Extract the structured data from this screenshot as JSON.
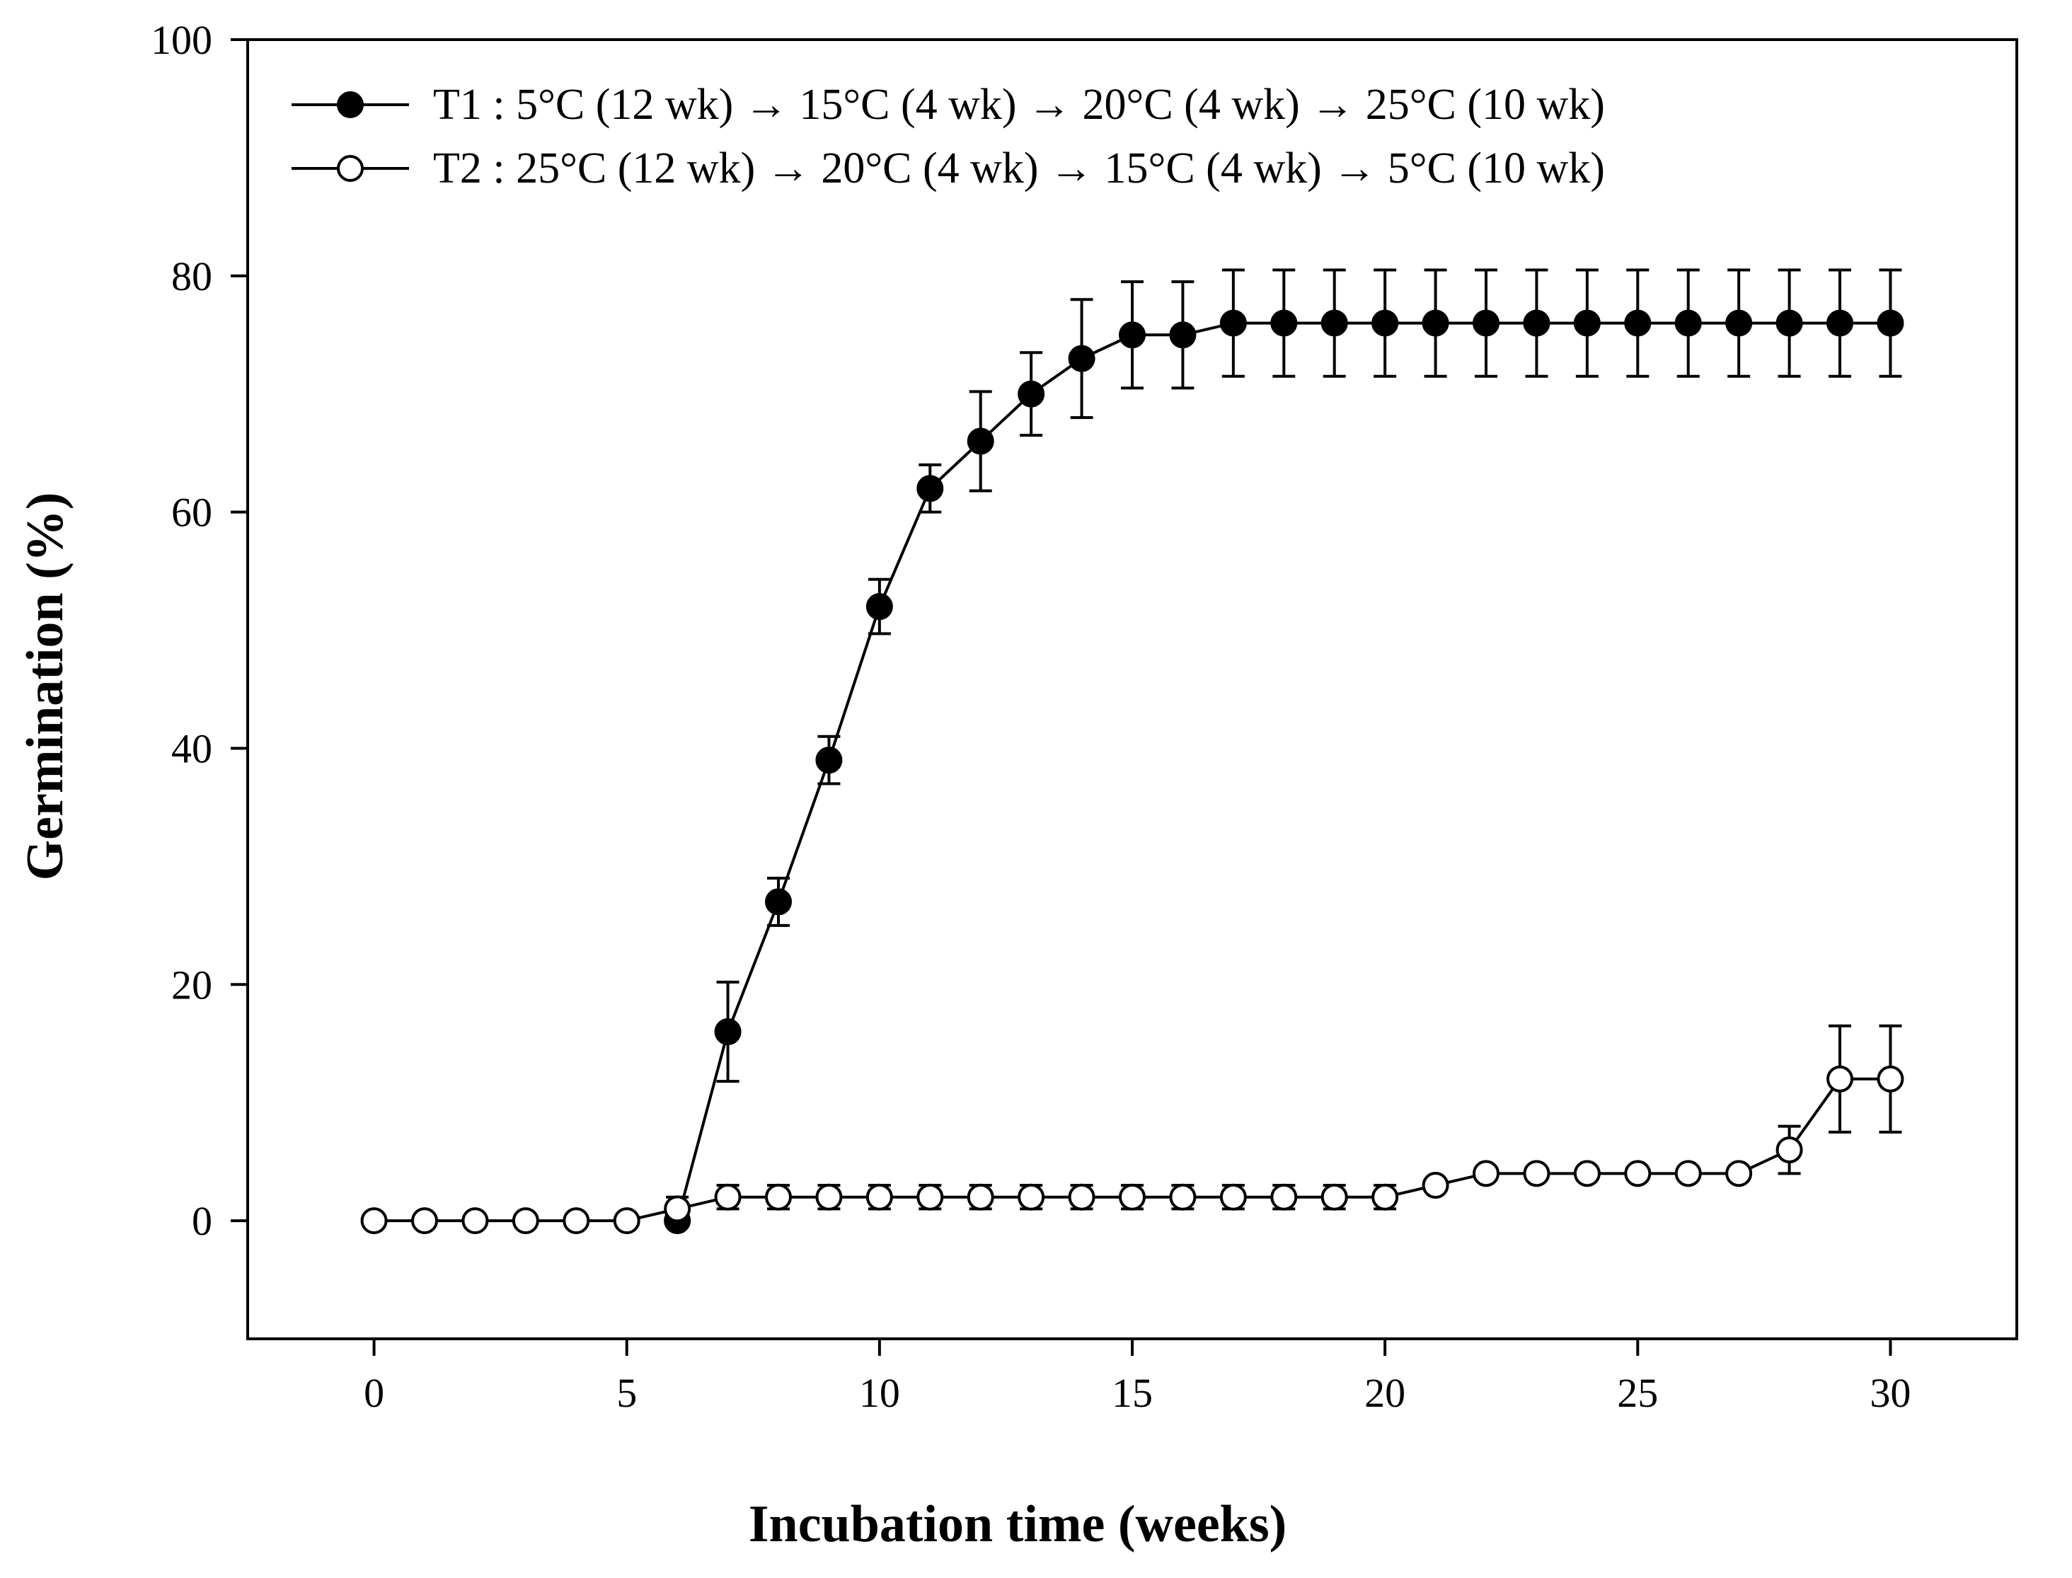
{
  "chart_data": {
    "type": "line",
    "title": "",
    "xlabel": "Incubation time (weeks)",
    "ylabel": "Germination (%)",
    "xlim": [
      -2.5,
      32.5
    ],
    "ylim": [
      -10,
      100
    ],
    "xticks": [
      0,
      5,
      10,
      15,
      20,
      25,
      30
    ],
    "yticks": [
      0,
      20,
      40,
      60,
      80,
      100
    ],
    "xtick_labels": [
      "0",
      "5",
      "10",
      "15",
      "20",
      "25",
      "30"
    ],
    "ytick_labels": [
      "0",
      "20",
      "40",
      "60",
      "80",
      "100"
    ],
    "grid": false,
    "legend_position": "top-left",
    "series": [
      {
        "name": "T1 : 5°C (12 wk) → 15°C (4 wk) → 20°C (4 wk) → 25°C (10 wk)",
        "marker": "filled-circle",
        "color": "#000000",
        "x": [
          6,
          7,
          8,
          9,
          10,
          11,
          12,
          13,
          14,
          15,
          16,
          17,
          18,
          19,
          20,
          21,
          22,
          23,
          24,
          25,
          26,
          27,
          28,
          29,
          30
        ],
        "y": [
          0,
          16,
          27,
          39,
          52,
          62,
          66,
          70,
          73,
          75,
          75,
          76,
          76,
          76,
          76,
          76,
          76,
          76,
          76,
          76,
          76,
          76,
          76,
          76,
          76
        ],
        "error": [
          0,
          4.2,
          2,
          2,
          2.3,
          2,
          4.2,
          3.5,
          5,
          4.5,
          4.5,
          4.5,
          4.5,
          4.5,
          4.5,
          4.5,
          4.5,
          4.5,
          4.5,
          4.5,
          4.5,
          4.5,
          4.5,
          4.5,
          4.5
        ]
      },
      {
        "name": "T2 : 25°C (12 wk) → 20°C (4 wk) → 15°C (4 wk) → 5°C (10 wk)",
        "marker": "open-circle",
        "color": "#000000",
        "x": [
          0,
          1,
          2,
          3,
          4,
          5,
          6,
          7,
          8,
          9,
          10,
          11,
          12,
          13,
          14,
          15,
          16,
          17,
          18,
          19,
          20,
          21,
          22,
          23,
          24,
          25,
          26,
          27,
          28,
          29,
          30
        ],
        "y": [
          0,
          0,
          0,
          0,
          0,
          0,
          1,
          2,
          2,
          2,
          2,
          2,
          2,
          2,
          2,
          2,
          2,
          2,
          2,
          2,
          2,
          3,
          4,
          4,
          4,
          4,
          4,
          4,
          6,
          12,
          12
        ],
        "error": [
          0,
          0,
          0,
          0,
          0,
          0,
          1,
          1,
          1,
          1,
          1,
          1,
          1,
          1,
          1,
          1,
          1,
          1,
          1,
          1,
          1,
          0,
          0,
          0,
          0,
          0,
          0,
          0,
          2,
          4.5,
          4.5
        ]
      }
    ]
  }
}
